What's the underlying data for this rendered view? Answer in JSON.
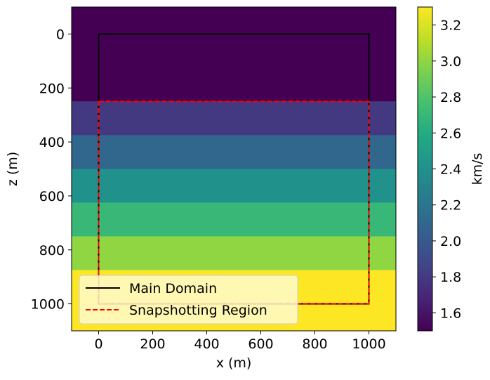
{
  "chart_data": {
    "type": "heatmap",
    "title": "",
    "xlabel": "x (m)",
    "ylabel": "z (m)",
    "xlim": [
      -100,
      1100
    ],
    "ylim": [
      1100,
      -100
    ],
    "x_ticks": [
      0,
      200,
      400,
      600,
      800,
      1000
    ],
    "y_ticks": [
      0,
      200,
      400,
      600,
      800,
      1000
    ],
    "layers": [
      {
        "z_top": -100,
        "z_bottom": 250,
        "velocity": 1.5
      },
      {
        "z_top": 250,
        "z_bottom": 375,
        "velocity": 1.8
      },
      {
        "z_top": 375,
        "z_bottom": 500,
        "velocity": 2.1
      },
      {
        "z_top": 500,
        "z_bottom": 625,
        "velocity": 2.4
      },
      {
        "z_top": 625,
        "z_bottom": 750,
        "velocity": 2.7
      },
      {
        "z_top": 750,
        "z_bottom": 875,
        "velocity": 3.0
      },
      {
        "z_top": 875,
        "z_bottom": 1100,
        "velocity": 3.3
      }
    ],
    "overlays": [
      {
        "name": "Main Domain",
        "x": [
          0,
          1000
        ],
        "z": [
          0,
          1000
        ],
        "color": "#000000",
        "style": "solid"
      },
      {
        "name": "Snapshotting Region",
        "x": [
          0,
          1000
        ],
        "z": [
          250,
          1000
        ],
        "color": "#ff0000",
        "style": "dashed"
      }
    ],
    "colorbar": {
      "label": "km/s",
      "min": 1.5,
      "max": 3.3,
      "ticks": [
        "1.6",
        "1.8",
        "2.0",
        "2.2",
        "2.4",
        "2.6",
        "2.8",
        "3.0",
        "3.2"
      ],
      "colormap": "viridis"
    },
    "legend": {
      "placement": "lower-left",
      "background": "#fffacd"
    },
    "grid": false
  }
}
